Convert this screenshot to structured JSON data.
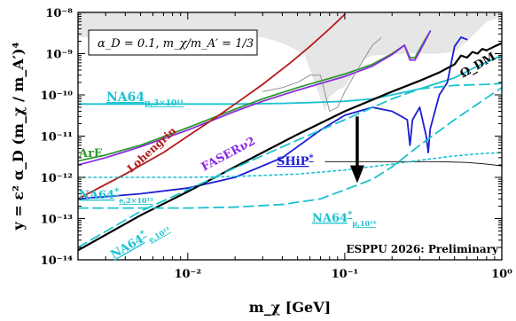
{
  "chart_data": {
    "type": "line",
    "title": "",
    "xlabel": "m_χ [GeV]",
    "ylabel": "y = ε² α_D (m_χ / m_A′)⁴",
    "xscale": "log",
    "yscale": "log",
    "xlim": [
      0.002,
      1.0
    ],
    "ylim": [
      1e-14,
      1e-08
    ],
    "x_ticks": [
      {
        "value": 0.01,
        "label": "10⁻²"
      },
      {
        "value": 0.1,
        "label": "10⁻¹"
      },
      {
        "value": 1,
        "label": "10⁰"
      }
    ],
    "y_ticks": [
      {
        "value": 1e-08,
        "label": "10⁻⁸"
      },
      {
        "value": 1e-09,
        "label": "10⁻⁹"
      },
      {
        "value": 1e-10,
        "label": "10⁻¹⁰"
      },
      {
        "value": 1e-11,
        "label": "10⁻¹¹"
      },
      {
        "value": 1e-12,
        "label": "10⁻¹²"
      },
      {
        "value": 1e-13,
        "label": "10⁻¹³"
      },
      {
        "value": 1e-14,
        "label": "10⁻¹⁴"
      }
    ],
    "parameter_box": "α_D = 0.1, m_χ/m_A′ = 1/3",
    "annotation": "ESPPU 2026: Preliminary",
    "excluded_region": {
      "color": "#e6e6e6",
      "x": [
        0.002,
        0.005,
        0.01,
        0.02,
        0.03,
        0.04,
        0.055,
        0.075,
        0.08,
        0.09,
        0.1,
        0.13,
        0.15,
        0.2,
        0.25,
        0.35,
        0.4,
        0.5,
        0.6,
        0.8,
        1.0
      ],
      "y": [
        2.5e-09,
        2.5e-09,
        2.5e-09,
        2.5e-09,
        2.5e-09,
        1.8e-09,
        1e-09,
        4e-11,
        9e-11,
        1.3e-10,
        1.6e-10,
        7e-10,
        9e-10,
        9.5e-10,
        1e-09,
        1e-09,
        1e-09,
        1.1e-09,
        2e-09,
        6e-09,
        8e-09
      ]
    },
    "series": [
      {
        "name": "NA64μ,3×10¹¹",
        "label_text": "NA64",
        "label_sub": "μ,3×10¹¹",
        "color": "#19c2cf",
        "style": "solid",
        "width": 1.8,
        "x": [
          0.002,
          0.005,
          0.01,
          0.02,
          0.04,
          0.06,
          0.1,
          0.15,
          0.2,
          0.3,
          0.5,
          0.7,
          1.0
        ],
        "y": [
          6e-11,
          6e-11,
          6e-11,
          6e-11,
          6.2e-11,
          6.5e-11,
          7e-11,
          8e-11,
          1e-10,
          1.4e-10,
          2.6e-10,
          5e-10,
          9e-10
        ]
      },
      {
        "name": "ArE",
        "label_text": "ArE",
        "color": "#2e9a2e",
        "style": "solid",
        "width": 1.8,
        "x": [
          0.002,
          0.003,
          0.005,
          0.01,
          0.02,
          0.03,
          0.05,
          0.1,
          0.15,
          0.2,
          0.24,
          0.26,
          0.28,
          0.32,
          0.35
        ],
        "y": [
          2.5e-12,
          3.5e-12,
          6e-12,
          1.6e-11,
          4.5e-11,
          8e-11,
          1.5e-10,
          3.2e-10,
          5.5e-10,
          1e-09,
          1.6e-09,
          8e-10,
          8e-10,
          2e-09,
          3.5e-09
        ]
      },
      {
        "name": "FASERv2",
        "label_text": "FASERν2",
        "color": "#8a2be2",
        "style": "solid",
        "width": 1.8,
        "x": [
          0.002,
          0.003,
          0.005,
          0.01,
          0.02,
          0.03,
          0.05,
          0.1,
          0.15,
          0.2,
          0.24,
          0.26,
          0.28,
          0.32,
          0.35
        ],
        "y": [
          2e-12,
          3e-12,
          5.5e-12,
          1.4e-11,
          4e-11,
          7e-11,
          1.3e-10,
          2.8e-10,
          5e-10,
          9.5e-10,
          1.6e-09,
          7e-10,
          7e-10,
          1.8e-09,
          3.5e-09
        ]
      },
      {
        "name": "Lohengrin",
        "label_text": "Lohengrin",
        "color": "#b31b1b",
        "style": "solid",
        "width": 1.8,
        "x": [
          0.002,
          0.004,
          0.007,
          0.01,
          0.015,
          0.02,
          0.03,
          0.045,
          0.06,
          0.08,
          0.1
        ],
        "y": [
          3e-13,
          1.2e-12,
          4e-12,
          1e-11,
          2.8e-11,
          6e-11,
          1.8e-10,
          6e-10,
          1.5e-09,
          4e-09,
          9e-09
        ]
      },
      {
        "name": "SHiP*",
        "label_text": "SHiP",
        "color": "#1c1cd6",
        "style": "solid",
        "width": 1.8,
        "x": [
          0.002,
          0.005,
          0.01,
          0.02,
          0.04,
          0.07,
          0.1,
          0.15,
          0.2,
          0.25,
          0.26,
          0.27,
          0.3,
          0.33,
          0.34,
          0.35,
          0.4,
          0.45,
          0.5,
          0.55,
          0.6
        ],
        "y": [
          3e-13,
          4e-13,
          5.5e-13,
          1e-12,
          3e-12,
          1.4e-11,
          3.2e-11,
          5e-11,
          4e-11,
          2.5e-11,
          6e-12,
          2.5e-11,
          5e-11,
          1e-11,
          4e-12,
          1.5e-11,
          1e-10,
          2e-10,
          1.5e-09,
          2.5e-09,
          2.2e-09
        ]
      },
      {
        "name": "Thermal DM",
        "label_text": "Ω_DM",
        "color": "#000000",
        "style": "solid",
        "width": 2.2,
        "x": [
          0.002,
          0.005,
          0.01,
          0.02,
          0.05,
          0.1,
          0.2,
          0.3,
          0.4,
          0.5,
          0.55,
          0.6,
          0.65,
          0.7,
          0.75,
          0.8,
          0.9,
          1.0
        ],
        "y": [
          1.7e-14,
          1.2e-13,
          4.5e-13,
          1.8e-12,
          1.1e-11,
          4e-11,
          1.2e-10,
          2.2e-10,
          3.5e-10,
          5.5e-10,
          9e-10,
          8e-10,
          1.1e-09,
          1e-09,
          1.3e-09,
          1.2e-09,
          1.5e-09,
          1.8e-09
        ]
      },
      {
        "name": "Thin black",
        "label_text": "",
        "color": "#000000",
        "style": "solid",
        "width": 0.9,
        "x": [
          0.075,
          0.1,
          0.2,
          0.4,
          0.6,
          0.8,
          1.0
        ],
        "y": [
          2.4e-12,
          2.4e-12,
          2.4e-12,
          2.4e-12,
          2.3e-12,
          2.1e-12,
          1.9e-12
        ]
      },
      {
        "name": "Grey",
        "label_text": "",
        "color": "#888888",
        "style": "solid",
        "width": 0.9,
        "x": [
          0.03,
          0.04,
          0.05,
          0.06,
          0.07,
          0.08,
          0.09,
          0.1,
          0.12,
          0.15,
          0.17
        ],
        "y": [
          1.2e-10,
          1.5e-10,
          2e-10,
          3e-10,
          3e-10,
          4e-11,
          5e-11,
          1.2e-10,
          4e-10,
          1.6e-09,
          2.4e-09
        ]
      },
      {
        "name": "NA64e*,10¹³",
        "label_text": "NA64",
        "label_sub": "e,10¹³",
        "color": "#19c2cf",
        "style": "dash",
        "width": 1.8,
        "x": [
          0.002,
          0.005,
          0.01,
          0.02,
          0.05,
          0.1,
          0.2,
          0.3,
          0.5,
          0.8,
          1.0
        ],
        "y": [
          2e-14,
          1.5e-13,
          5e-13,
          1.7e-12,
          8e-12,
          2.5e-11,
          8e-11,
          1.4e-10,
          1.7e-10,
          1.8e-10,
          1.9e-10
        ]
      },
      {
        "name": "NA64μ*,10¹⁴",
        "label_text": "NA64",
        "label_sub": "μ,10¹⁴",
        "color": "#19c2cf",
        "style": "dash",
        "width": 1.8,
        "x": [
          0.002,
          0.005,
          0.01,
          0.02,
          0.04,
          0.07,
          0.1,
          0.15,
          0.2,
          0.3,
          0.5,
          0.7,
          1.0
        ],
        "y": [
          1.8e-13,
          1.8e-13,
          1.8e-13,
          1.9e-13,
          2.2e-13,
          3e-13,
          5e-13,
          9e-13,
          1.8e-12,
          6e-12,
          2.5e-11,
          6e-11,
          1.5e-10
        ]
      },
      {
        "name": "NA64e*,2×10¹³",
        "label_text": "NA64",
        "label_sub": "e,2×10¹³",
        "color": "#19c2cf",
        "style": "dot",
        "width": 1.6,
        "x": [
          0.002,
          0.005,
          0.01,
          0.02,
          0.05,
          0.1,
          0.2,
          0.3,
          0.5,
          0.7,
          1.0
        ],
        "y": [
          1e-12,
          1e-12,
          1e-12,
          1.05e-12,
          1.2e-12,
          1.5e-12,
          2.1e-12,
          2.6e-12,
          3.3e-12,
          3.7e-12,
          4e-12
        ]
      }
    ],
    "arrow": {
      "x": 0.12,
      "y_from": 3e-11,
      "y_to": 8e-13
    }
  }
}
